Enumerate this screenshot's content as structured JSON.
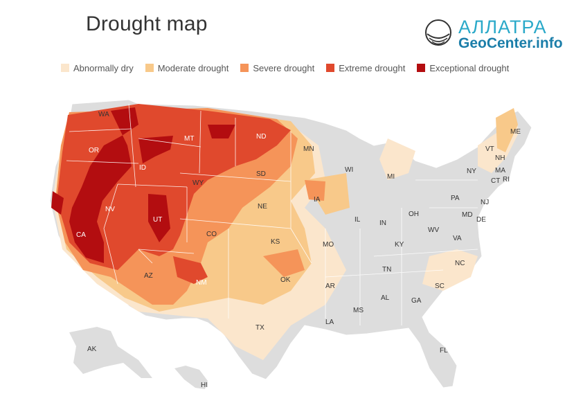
{
  "title": "Drought map",
  "logo": {
    "line1": "АЛЛАТРА",
    "line2": "GeoCenter.info"
  },
  "legend": [
    {
      "label": "Abnormally dry",
      "color": "#fbe6cc"
    },
    {
      "label": "Moderate drought",
      "color": "#f8c98a"
    },
    {
      "label": "Severe drought",
      "color": "#f59459"
    },
    {
      "label": "Extreme drought",
      "color": "#e0492d"
    },
    {
      "label": "Exceptional drought",
      "color": "#b30d10"
    }
  ],
  "no_drought_color": "#dddddd",
  "state_labels": [
    "WA",
    "OR",
    "ID",
    "MT",
    "ND",
    "MN",
    "WI",
    "MI",
    "NY",
    "VT",
    "NH",
    "ME",
    "MA",
    "CT",
    "RI",
    "NV",
    "CA",
    "UT",
    "WY",
    "SD",
    "NE",
    "IA",
    "IL",
    "IN",
    "OH",
    "PA",
    "NJ",
    "MD",
    "DE",
    "WV",
    "VA",
    "CO",
    "KS",
    "MO",
    "KY",
    "TN",
    "NC",
    "SC",
    "AZ",
    "NM",
    "OK",
    "AR",
    "MS",
    "AL",
    "GA",
    "TX",
    "LA",
    "FL",
    "AK",
    "HI"
  ]
}
